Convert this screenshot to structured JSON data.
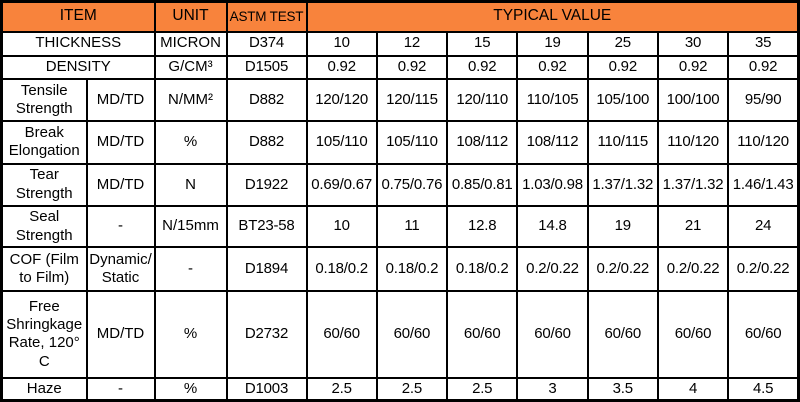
{
  "colors": {
    "header_bg": "#F8833C",
    "border": "#000000",
    "text": "#000000",
    "cell_bg": "#FFFFFF"
  },
  "table": {
    "header": {
      "item": "ITEM",
      "unit": "UNIT",
      "astm_test": "ASTM TEST",
      "typical_value": "TYPICAL VALUE"
    },
    "rows": [
      {
        "item": "THICKNESS",
        "sub": null,
        "unit": "MICRON",
        "astm": "D374",
        "values": [
          "10",
          "12",
          "15",
          "19",
          "25",
          "30",
          "35"
        ]
      },
      {
        "item": "DENSITY",
        "sub": null,
        "unit": "G/CM³",
        "astm": "D1505",
        "values": [
          "0.92",
          "0.92",
          "0.92",
          "0.92",
          "0.92",
          "0.92",
          "0.92"
        ]
      },
      {
        "item": "Tensile Strength",
        "sub": "MD/TD",
        "unit": "N/MM²",
        "astm": "D882",
        "values": [
          "120/120",
          "120/115",
          "120/110",
          "110/105",
          "105/100",
          "100/100",
          "95/90"
        ]
      },
      {
        "item": "Break Elongation",
        "sub": "MD/TD",
        "unit": "%",
        "astm": "D882",
        "values": [
          "105/110",
          "105/110",
          "108/112",
          "108/112",
          "110/115",
          "110/120",
          "110/120"
        ]
      },
      {
        "item": "Tear Strength",
        "sub": "MD/TD",
        "unit": "N",
        "astm": "D1922",
        "values": [
          "0.69/0.67",
          "0.75/0.76",
          "0.85/0.81",
          "1.03/0.98",
          "1.37/1.32",
          "1.37/1.32",
          "1.46/1.43"
        ]
      },
      {
        "item": "Seal Strength",
        "sub": "-",
        "unit": "N/15mm",
        "astm": "BT23-58",
        "values": [
          "10",
          "11",
          "12.8",
          "14.8",
          "19",
          "21",
          "24"
        ]
      },
      {
        "item": "COF (Film to Film)",
        "sub": "Dynamic/Static",
        "unit": "-",
        "astm": "D1894",
        "values": [
          "0.18/0.2",
          "0.18/0.2",
          "0.18/0.2",
          "0.2/0.22",
          "0.2/0.22",
          "0.2/0.22",
          "0.2/0.22"
        ]
      },
      {
        "item": "Free Shringkage Rate, 120° C",
        "sub": "MD/TD",
        "unit": "%",
        "astm": "D2732",
        "values": [
          "60/60",
          "60/60",
          "60/60",
          "60/60",
          "60/60",
          "60/60",
          "60/60"
        ]
      },
      {
        "item": "Haze",
        "sub": "-",
        "unit": "%",
        "astm": "D1003",
        "values": [
          "2.5",
          "2.5",
          "2.5",
          "3",
          "3.5",
          "4",
          "4.5"
        ]
      }
    ]
  }
}
